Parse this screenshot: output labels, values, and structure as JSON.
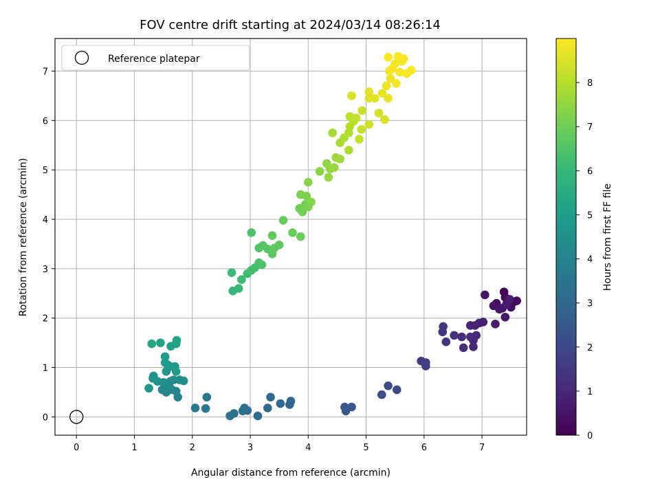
{
  "chart_data": {
    "type": "scatter",
    "title": "FOV centre drift starting at 2024/03/14 08:26:14",
    "xlabel": "Angular distance from reference (arcmin)",
    "ylabel": "Rotation from reference (arcmin)",
    "xlim": [
      -0.37,
      7.77
    ],
    "ylim": [
      -0.37,
      7.66
    ],
    "xticks": [
      "0",
      "1",
      "2",
      "3",
      "4",
      "5",
      "6",
      "7"
    ],
    "yticks": [
      "0",
      "1",
      "2",
      "3",
      "4",
      "5",
      "6",
      "7"
    ],
    "grid": true,
    "legend": {
      "position": "top-left",
      "entries": [
        "Reference platepar"
      ]
    },
    "reference_point": {
      "x": 0,
      "y": 0,
      "label": "Reference platepar"
    },
    "colorbar": {
      "label": "Hours from first FF file",
      "min": 0,
      "max": 9,
      "ticks": [
        "0",
        "1",
        "2",
        "3",
        "4",
        "5",
        "6",
        "7",
        "8"
      ],
      "colormap": [
        "#440154",
        "#482878",
        "#3e4989",
        "#31688e",
        "#26828e",
        "#1f9e89",
        "#35b779",
        "#6ece58",
        "#b5de2b",
        "#fde725"
      ]
    },
    "points": [
      {
        "x": 7.38,
        "y": 2.53,
        "h": 0.05
      },
      {
        "x": 7.4,
        "y": 2.42,
        "h": 0.1
      },
      {
        "x": 7.45,
        "y": 2.33,
        "h": 0.15
      },
      {
        "x": 7.55,
        "y": 2.33,
        "h": 0.2
      },
      {
        "x": 7.6,
        "y": 2.35,
        "h": 0.25
      },
      {
        "x": 7.5,
        "y": 2.22,
        "h": 0.3
      },
      {
        "x": 7.35,
        "y": 2.2,
        "h": 0.35
      },
      {
        "x": 7.25,
        "y": 2.3,
        "h": 0.4
      },
      {
        "x": 7.2,
        "y": 2.25,
        "h": 0.45
      },
      {
        "x": 7.05,
        "y": 2.47,
        "h": 0.5
      },
      {
        "x": 7.3,
        "y": 2.18,
        "h": 0.55
      },
      {
        "x": 7.4,
        "y": 2.02,
        "h": 0.6
      },
      {
        "x": 7.23,
        "y": 1.88,
        "h": 0.65
      },
      {
        "x": 7.42,
        "y": 2.28,
        "h": 0.7
      },
      {
        "x": 7.48,
        "y": 2.38,
        "h": 0.75
      },
      {
        "x": 7.02,
        "y": 1.92,
        "h": 0.8
      },
      {
        "x": 6.95,
        "y": 1.9,
        "h": 0.85
      },
      {
        "x": 6.88,
        "y": 1.85,
        "h": 0.9
      },
      {
        "x": 6.8,
        "y": 1.85,
        "h": 0.95
      },
      {
        "x": 6.9,
        "y": 1.65,
        "h": 1.0
      },
      {
        "x": 6.85,
        "y": 1.55,
        "h": 1.05
      },
      {
        "x": 6.85,
        "y": 1.42,
        "h": 1.1
      },
      {
        "x": 6.8,
        "y": 1.62,
        "h": 1.15
      },
      {
        "x": 6.68,
        "y": 1.4,
        "h": 1.2
      },
      {
        "x": 6.65,
        "y": 1.62,
        "h": 1.25
      },
      {
        "x": 6.52,
        "y": 1.65,
        "h": 1.3
      },
      {
        "x": 6.38,
        "y": 1.52,
        "h": 1.35
      },
      {
        "x": 6.32,
        "y": 1.72,
        "h": 1.4
      },
      {
        "x": 6.33,
        "y": 1.83,
        "h": 1.45
      },
      {
        "x": 6.03,
        "y": 1.1,
        "h": 1.6
      },
      {
        "x": 5.95,
        "y": 1.13,
        "h": 1.65
      },
      {
        "x": 6.03,
        "y": 1.03,
        "h": 1.7
      },
      {
        "x": 5.53,
        "y": 0.55,
        "h": 2.0
      },
      {
        "x": 5.38,
        "y": 0.63,
        "h": 2.05
      },
      {
        "x": 5.27,
        "y": 0.45,
        "h": 2.1
      },
      {
        "x": 4.75,
        "y": 0.2,
        "h": 2.4
      },
      {
        "x": 4.63,
        "y": 0.2,
        "h": 2.45
      },
      {
        "x": 4.65,
        "y": 0.12,
        "h": 2.5
      },
      {
        "x": 3.7,
        "y": 0.32,
        "h": 2.9
      },
      {
        "x": 3.68,
        "y": 0.25,
        "h": 2.95
      },
      {
        "x": 3.52,
        "y": 0.27,
        "h": 3.0
      },
      {
        "x": 3.35,
        "y": 0.4,
        "h": 3.05
      },
      {
        "x": 3.3,
        "y": 0.18,
        "h": 3.1
      },
      {
        "x": 3.13,
        "y": 0.02,
        "h": 3.15
      },
      {
        "x": 2.95,
        "y": 0.13,
        "h": 3.2
      },
      {
        "x": 2.9,
        "y": 0.18,
        "h": 3.25
      },
      {
        "x": 2.87,
        "y": 0.12,
        "h": 3.3
      },
      {
        "x": 2.72,
        "y": 0.07,
        "h": 3.35
      },
      {
        "x": 2.65,
        "y": 0.02,
        "h": 3.4
      },
      {
        "x": 2.25,
        "y": 0.4,
        "h": 3.6
      },
      {
        "x": 2.23,
        "y": 0.17,
        "h": 3.65
      },
      {
        "x": 2.05,
        "y": 0.18,
        "h": 3.7
      },
      {
        "x": 1.75,
        "y": 0.4,
        "h": 4.0
      },
      {
        "x": 1.72,
        "y": 0.52,
        "h": 4.05
      },
      {
        "x": 1.65,
        "y": 0.55,
        "h": 4.1
      },
      {
        "x": 1.55,
        "y": 0.5,
        "h": 4.15
      },
      {
        "x": 1.48,
        "y": 0.55,
        "h": 4.2
      },
      {
        "x": 1.6,
        "y": 0.62,
        "h": 4.25
      },
      {
        "x": 1.62,
        "y": 0.72,
        "h": 4.3
      },
      {
        "x": 1.68,
        "y": 0.75,
        "h": 4.35
      },
      {
        "x": 1.78,
        "y": 0.75,
        "h": 4.4
      },
      {
        "x": 1.85,
        "y": 0.73,
        "h": 4.45
      },
      {
        "x": 1.5,
        "y": 0.7,
        "h": 4.5
      },
      {
        "x": 1.4,
        "y": 0.72,
        "h": 4.55
      },
      {
        "x": 1.32,
        "y": 0.78,
        "h": 4.6
      },
      {
        "x": 1.33,
        "y": 0.83,
        "h": 4.65
      },
      {
        "x": 1.25,
        "y": 0.58,
        "h": 4.7
      },
      {
        "x": 1.55,
        "y": 0.92,
        "h": 4.75
      },
      {
        "x": 1.62,
        "y": 1.02,
        "h": 4.8
      },
      {
        "x": 1.58,
        "y": 1.05,
        "h": 4.85
      },
      {
        "x": 1.7,
        "y": 1.02,
        "h": 4.9
      },
      {
        "x": 1.72,
        "y": 0.92,
        "h": 4.95
      },
      {
        "x": 1.53,
        "y": 1.1,
        "h": 5.0
      },
      {
        "x": 1.53,
        "y": 1.22,
        "h": 5.05
      },
      {
        "x": 1.63,
        "y": 1.43,
        "h": 5.1
      },
      {
        "x": 1.72,
        "y": 1.48,
        "h": 5.15
      },
      {
        "x": 1.73,
        "y": 1.55,
        "h": 5.2
      },
      {
        "x": 1.45,
        "y": 1.5,
        "h": 5.25
      },
      {
        "x": 1.3,
        "y": 1.48,
        "h": 5.3
      },
      {
        "x": 2.7,
        "y": 2.55,
        "h": 6.0
      },
      {
        "x": 2.8,
        "y": 2.6,
        "h": 6.05
      },
      {
        "x": 2.68,
        "y": 2.92,
        "h": 6.1
      },
      {
        "x": 2.85,
        "y": 2.78,
        "h": 6.15
      },
      {
        "x": 2.95,
        "y": 2.9,
        "h": 6.2
      },
      {
        "x": 3.02,
        "y": 2.97,
        "h": 6.25
      },
      {
        "x": 3.08,
        "y": 3.02,
        "h": 6.3
      },
      {
        "x": 3.15,
        "y": 3.12,
        "h": 6.35
      },
      {
        "x": 3.2,
        "y": 3.08,
        "h": 6.4
      },
      {
        "x": 3.02,
        "y": 3.73,
        "h": 6.45
      },
      {
        "x": 3.15,
        "y": 3.42,
        "h": 6.5
      },
      {
        "x": 3.22,
        "y": 3.47,
        "h": 6.55
      },
      {
        "x": 3.3,
        "y": 3.4,
        "h": 6.6
      },
      {
        "x": 3.38,
        "y": 3.3,
        "h": 6.65
      },
      {
        "x": 3.42,
        "y": 3.42,
        "h": 6.7
      },
      {
        "x": 3.5,
        "y": 3.48,
        "h": 6.75
      },
      {
        "x": 3.38,
        "y": 3.67,
        "h": 6.8
      },
      {
        "x": 3.57,
        "y": 3.98,
        "h": 6.85
      },
      {
        "x": 3.73,
        "y": 3.73,
        "h": 6.9
      },
      {
        "x": 3.87,
        "y": 3.65,
        "h": 6.95
      },
      {
        "x": 3.85,
        "y": 4.22,
        "h": 7.0
      },
      {
        "x": 3.9,
        "y": 4.15,
        "h": 7.05
      },
      {
        "x": 3.95,
        "y": 4.3,
        "h": 7.1
      },
      {
        "x": 4.0,
        "y": 4.25,
        "h": 7.15
      },
      {
        "x": 3.87,
        "y": 4.5,
        "h": 7.2
      },
      {
        "x": 3.97,
        "y": 4.47,
        "h": 7.25
      },
      {
        "x": 4.05,
        "y": 4.35,
        "h": 7.3
      },
      {
        "x": 4.0,
        "y": 4.75,
        "h": 7.35
      },
      {
        "x": 4.2,
        "y": 4.97,
        "h": 7.4
      },
      {
        "x": 4.32,
        "y": 5.13,
        "h": 7.45
      },
      {
        "x": 4.38,
        "y": 5.02,
        "h": 7.5
      },
      {
        "x": 4.35,
        "y": 4.85,
        "h": 7.55
      },
      {
        "x": 4.45,
        "y": 5.05,
        "h": 7.6
      },
      {
        "x": 4.48,
        "y": 5.25,
        "h": 7.65
      },
      {
        "x": 4.55,
        "y": 5.22,
        "h": 7.7
      },
      {
        "x": 4.42,
        "y": 5.75,
        "h": 7.75
      },
      {
        "x": 4.55,
        "y": 5.55,
        "h": 7.8
      },
      {
        "x": 4.62,
        "y": 5.65,
        "h": 7.85
      },
      {
        "x": 4.7,
        "y": 5.4,
        "h": 7.9
      },
      {
        "x": 4.7,
        "y": 5.75,
        "h": 7.95
      },
      {
        "x": 4.72,
        "y": 5.88,
        "h": 8.0
      },
      {
        "x": 4.78,
        "y": 5.98,
        "h": 8.05
      },
      {
        "x": 4.72,
        "y": 6.08,
        "h": 8.1
      },
      {
        "x": 4.83,
        "y": 6.05,
        "h": 8.15
      },
      {
        "x": 4.88,
        "y": 5.62,
        "h": 8.2
      },
      {
        "x": 4.92,
        "y": 5.82,
        "h": 8.25
      },
      {
        "x": 4.93,
        "y": 6.2,
        "h": 8.3
      },
      {
        "x": 5.05,
        "y": 5.92,
        "h": 8.35
      },
      {
        "x": 5.22,
        "y": 6.15,
        "h": 8.4
      },
      {
        "x": 5.32,
        "y": 6.02,
        "h": 8.45
      },
      {
        "x": 4.75,
        "y": 6.5,
        "h": 8.5
      },
      {
        "x": 5.05,
        "y": 6.45,
        "h": 8.55
      },
      {
        "x": 5.05,
        "y": 6.58,
        "h": 8.6
      },
      {
        "x": 5.15,
        "y": 6.45,
        "h": 8.65
      },
      {
        "x": 5.28,
        "y": 6.55,
        "h": 8.7
      },
      {
        "x": 5.38,
        "y": 6.45,
        "h": 8.75
      },
      {
        "x": 5.35,
        "y": 6.7,
        "h": 8.78
      },
      {
        "x": 5.42,
        "y": 6.85,
        "h": 8.8
      },
      {
        "x": 5.52,
        "y": 6.75,
        "h": 8.83
      },
      {
        "x": 5.58,
        "y": 6.98,
        "h": 8.86
      },
      {
        "x": 5.5,
        "y": 7.15,
        "h": 8.89
      },
      {
        "x": 5.62,
        "y": 7.2,
        "h": 8.92
      },
      {
        "x": 5.7,
        "y": 6.95,
        "h": 8.94
      },
      {
        "x": 5.78,
        "y": 7.02,
        "h": 8.96
      },
      {
        "x": 5.38,
        "y": 7.28,
        "h": 8.98
      },
      {
        "x": 5.55,
        "y": 7.3,
        "h": 8.99
      },
      {
        "x": 5.45,
        "y": 7.05,
        "h": 8.9
      },
      {
        "x": 5.4,
        "y": 7.0,
        "h": 8.88
      },
      {
        "x": 5.65,
        "y": 7.25,
        "h": 8.95
      }
    ]
  }
}
